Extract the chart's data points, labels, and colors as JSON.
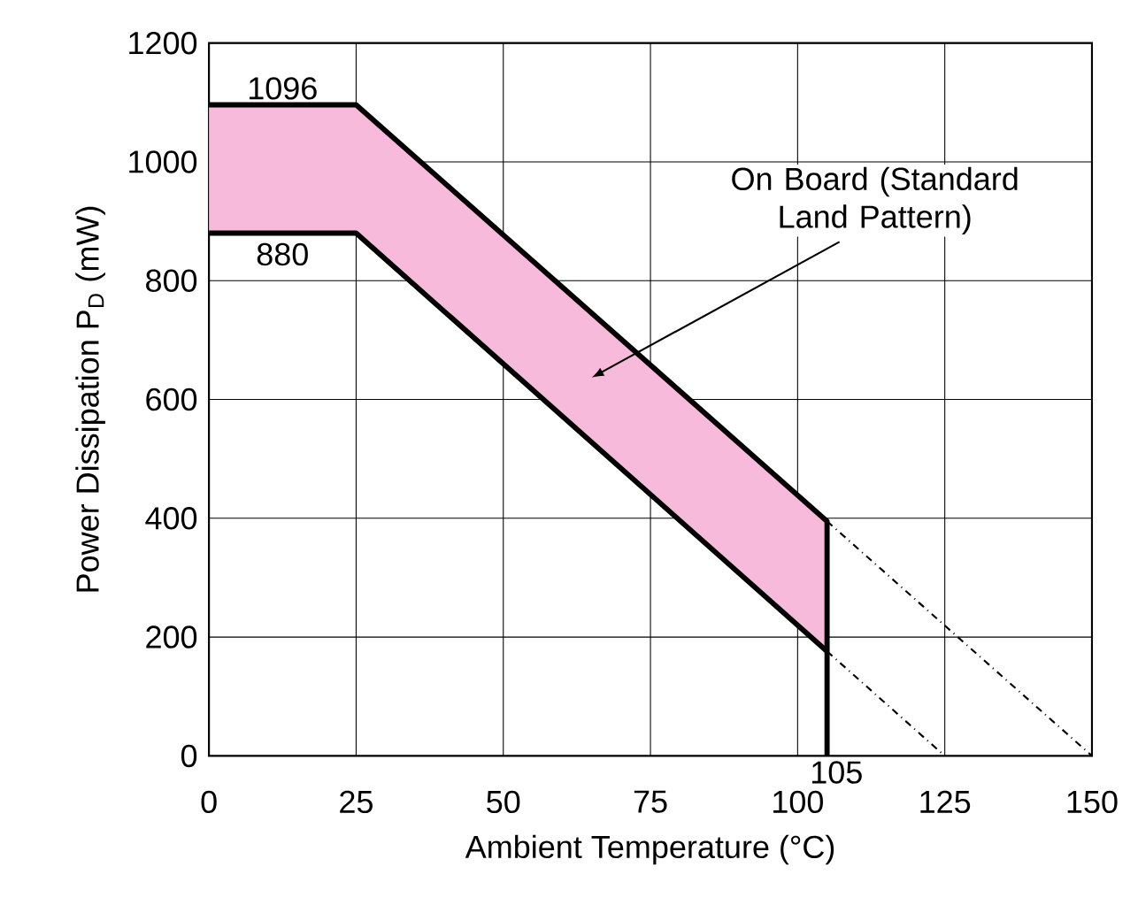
{
  "chart_data": {
    "type": "line",
    "xlabel": "Ambient Temperature (°C)",
    "ylabel": "Power Dissipation P$_{D}$ (mW)",
    "xlim": [
      0,
      150
    ],
    "xticks": [
      0,
      25,
      50,
      75,
      100,
      125,
      150
    ],
    "ylim": [
      0,
      1200
    ],
    "yticks": [
      0,
      200,
      400,
      600,
      800,
      1000,
      1200
    ],
    "grid": true,
    "series": [
      {
        "color": "#000000",
        "x": [
          0,
          25,
          105,
          105
        ],
        "values": [
          1096,
          1096,
          395,
          0
        ],
        "line_style": "solid"
      },
      {
        "color": "#000000",
        "x": [
          0,
          25,
          105
        ],
        "values": [
          880,
          880,
          176
        ],
        "line_style": "solid",
        "lower": [
          880,
          880,
          176
        ],
        "upper": [
          1096,
          1096,
          395
        ]
      },
      {
        "color": "#000000",
        "x": [
          105,
          150
        ],
        "values": [
          395,
          0
        ],
        "line_style": "dashed"
      },
      {
        "color": "#000000",
        "x": [
          105,
          125
        ],
        "values": [
          176,
          0
        ],
        "line_style": "dashed"
      }
    ],
    "annotations": [
      "1096",
      "880",
      "On Board (Standard Land Pattern)",
      "105"
    ]
  }
}
